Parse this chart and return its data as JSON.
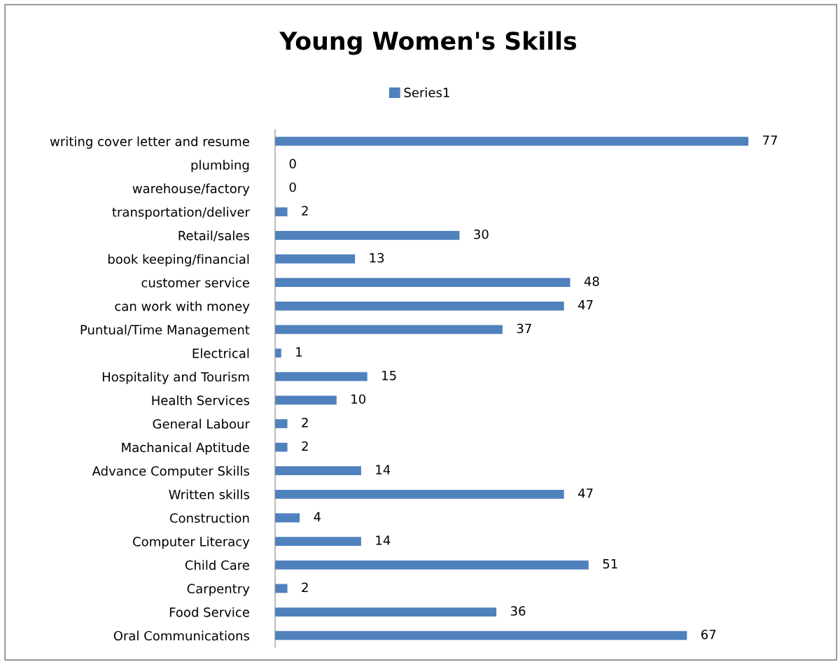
{
  "chart_data": {
    "type": "bar",
    "orientation": "horizontal",
    "title": "Young Women's Skills",
    "categories": [
      "writing cover letter and resume",
      "plumbing",
      "warehouse/factory",
      "transportation/deliver",
      "Retail/sales",
      "book keeping/financial",
      "customer service",
      "can work with money",
      "Puntual/Time Management",
      "Electrical",
      "Hospitality and Tourism",
      "Health Services",
      "General Labour",
      "Machanical Aptitude",
      "Advance Computer Skills",
      "Written skills",
      "Construction",
      "Computer Literacy",
      "Child Care",
      "Carpentry",
      "Food Service",
      "Oral Communications"
    ],
    "series": [
      {
        "name": "Series1",
        "color": "#4f81bd",
        "values": [
          77,
          0,
          0,
          2,
          30,
          13,
          48,
          47,
          37,
          1,
          15,
          10,
          2,
          2,
          14,
          47,
          4,
          14,
          51,
          2,
          36,
          67
        ]
      }
    ],
    "data_labels": true,
    "legend": "top",
    "tick_labels": "y",
    "grid": false
  }
}
